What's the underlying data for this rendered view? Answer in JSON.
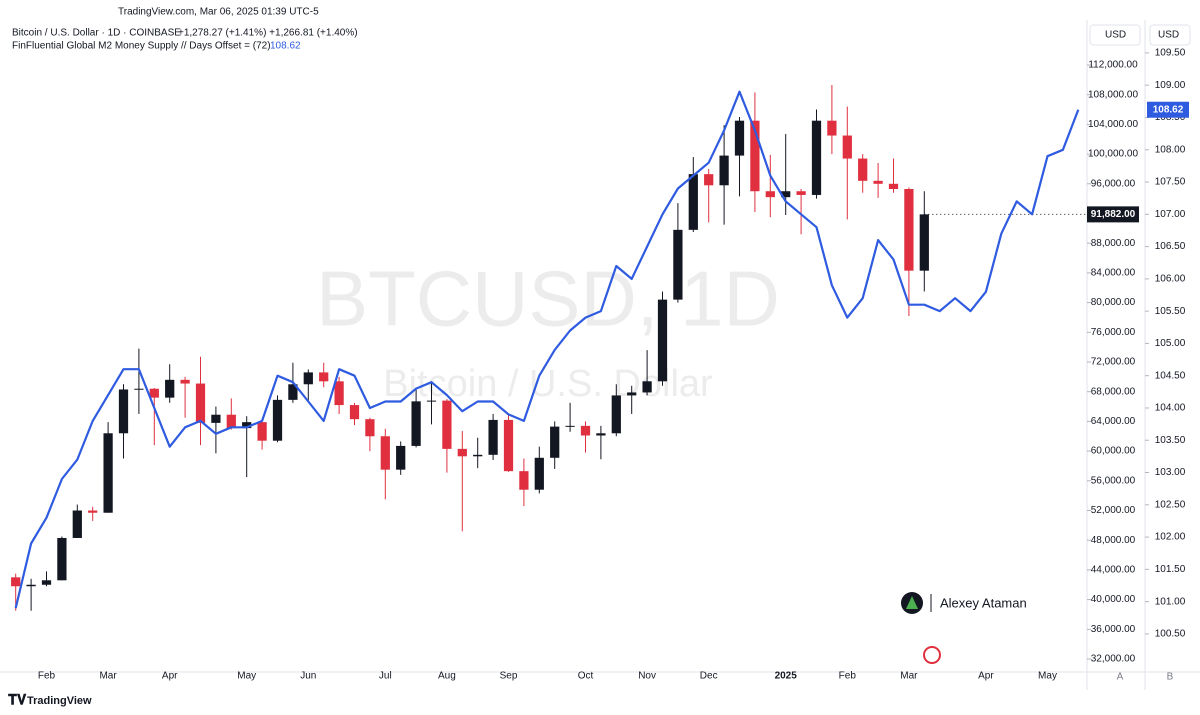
{
  "chart_data": {
    "type": "candlestick",
    "header": "TradingView.com, Mar 06, 2025 01:39 UTC-5",
    "watermark": "BTCUSD, 1D",
    "watermark_subtitle": "Bitcoin / U.S. Dollar",
    "author": "Alexey Ataman",
    "brand": "TradingView",
    "currency_labels": [
      "USD",
      "USD"
    ],
    "scale_labels": [
      "A",
      "B"
    ],
    "categories": [
      null,
      null,
      "Feb",
      null,
      null,
      null,
      "Mar",
      null,
      null,
      null,
      "Apr",
      null,
      null,
      null,
      null,
      "May",
      null,
      null,
      null,
      "Jun",
      null,
      null,
      null,
      null,
      "Jul",
      null,
      null,
      null,
      "Aug",
      null,
      null,
      null,
      "Sep",
      null,
      null,
      null,
      null,
      "Oct",
      null,
      null,
      null,
      "Nov",
      null,
      null,
      null,
      "Dec",
      null,
      null,
      null,
      null,
      "2025",
      null,
      null,
      null,
      "Feb",
      null,
      null,
      null,
      "Mar",
      null,
      null,
      null,
      null,
      "Apr",
      null,
      null,
      null,
      "May",
      null,
      null
    ],
    "series": [
      {
        "name": "Bitcoin / U.S. Dollar · 1D · COINBASE",
        "change_text": "+1,278.27 (+1.41%)  +1,266.81 (+1.40%)",
        "type": "candlestick",
        "up_color": "#131722",
        "down_color": "#e0303f",
        "last_price_label": "91,882.00",
        "open": [
          43000,
          41800,
          42000,
          42600,
          48300,
          52000,
          51700,
          62400,
          68300,
          68400,
          67200,
          69600,
          69100,
          63800,
          64900,
          63100,
          63900,
          61400,
          66900,
          69000,
          70600,
          69400,
          66200,
          64300,
          62000,
          57500,
          60700,
          66700,
          66800,
          60300,
          59300,
          59500,
          64200,
          57300,
          54800,
          59100,
          63300,
          63400,
          62100,
          62400,
          67500,
          67900,
          69400,
          80400,
          89800,
          97300,
          95800,
          99800,
          104500,
          95000,
          94200,
          95000,
          94500,
          104500,
          102500,
          99400,
          96400,
          96000,
          95300,
          84300,
          null,
          null,
          null,
          null,
          null,
          null,
          null,
          null,
          null,
          null
        ],
        "high": [
          43500,
          42800,
          43800,
          48500,
          52800,
          52500,
          63900,
          69000,
          73800,
          68500,
          71700,
          70000,
          72700,
          66000,
          67100,
          64700,
          64400,
          67500,
          71900,
          71000,
          71900,
          70000,
          66500,
          64500,
          63000,
          61300,
          68300,
          69400,
          67000,
          62700,
          61800,
          65000,
          64900,
          59000,
          60600,
          64000,
          66500,
          64000,
          63400,
          69000,
          68800,
          73600,
          81500,
          93400,
          99600,
          98000,
          103900,
          105000,
          108300,
          99900,
          102700,
          95300,
          106000,
          109300,
          106400,
          100000,
          98800,
          99400,
          95500,
          95000,
          null,
          null,
          null,
          null,
          null,
          null,
          null,
          null,
          null,
          null
        ],
        "low": [
          38500,
          38500,
          41800,
          42600,
          48300,
          50600,
          51700,
          59000,
          65000,
          60800,
          66500,
          64500,
          60800,
          59700,
          62900,
          56500,
          60200,
          61200,
          66500,
          66700,
          68600,
          65000,
          63500,
          60000,
          53500,
          56800,
          60500,
          63600,
          57100,
          49200,
          57700,
          58800,
          57200,
          52600,
          54300,
          57600,
          62600,
          59800,
          58900,
          62000,
          65000,
          67500,
          68800,
          80000,
          89500,
          90800,
          90500,
          94300,
          92200,
          91500,
          91800,
          89200,
          94000,
          100000,
          91200,
          94800,
          94100,
          94800,
          78200,
          81500,
          null,
          null,
          null,
          null,
          null,
          null,
          null,
          null,
          null,
          null
        ],
        "close": [
          41800,
          42000,
          42600,
          48300,
          52000,
          51700,
          62400,
          68300,
          68400,
          67200,
          69600,
          69100,
          63800,
          64900,
          63100,
          63900,
          61400,
          66900,
          69000,
          70600,
          69400,
          66200,
          64300,
          62000,
          57500,
          60700,
          66700,
          66800,
          60300,
          59300,
          59500,
          64200,
          57300,
          54800,
          59100,
          63300,
          63400,
          62100,
          62400,
          67500,
          67900,
          69400,
          80400,
          89800,
          97300,
          95800,
          99800,
          104500,
          95000,
          94200,
          95000,
          94500,
          104500,
          102500,
          99400,
          96400,
          96000,
          95300,
          84300,
          91882,
          null,
          null,
          null,
          null,
          null,
          null,
          null,
          null,
          null,
          null
        ]
      },
      {
        "name": "FinFluential Global M2 Money Supply // Days Offset = (72)",
        "type": "line",
        "axis": "y2",
        "color": "#2f5be0",
        "values": [
          100.9,
          101.9,
          102.3,
          102.9,
          103.2,
          103.8,
          104.2,
          104.6,
          104.6,
          104.0,
          103.4,
          103.7,
          103.8,
          103.6,
          103.7,
          103.7,
          103.8,
          104.5,
          104.4,
          104.1,
          103.8,
          104.6,
          104.5,
          104.0,
          104.1,
          104.1,
          104.3,
          104.4,
          104.2,
          103.95,
          104.1,
          104.1,
          103.9,
          103.8,
          104.5,
          104.9,
          105.2,
          105.4,
          105.5,
          106.2,
          106.0,
          106.5,
          107.0,
          107.4,
          107.6,
          107.8,
          108.3,
          108.9,
          108.3,
          107.6,
          107.2,
          107.0,
          106.8,
          105.9,
          105.4,
          105.7,
          106.6,
          106.3,
          105.6,
          105.6,
          105.5,
          105.7,
          105.5,
          105.8,
          106.7,
          107.2,
          107.0,
          107.9,
          108.0,
          108.62
        ]
      }
    ],
    "ylim": [
      30250,
      118060
    ],
    "yticks": [
      {
        "value": 32000,
        "label": "32,000.00"
      },
      {
        "value": 36000,
        "label": "36,000.00"
      },
      {
        "value": 40000,
        "label": "40,000.00"
      },
      {
        "value": 44000,
        "label": "44,000.00"
      },
      {
        "value": 48000,
        "label": "48,000.00"
      },
      {
        "value": 52000,
        "label": "52,000.00"
      },
      {
        "value": 56000,
        "label": "56,000.00"
      },
      {
        "value": 60000,
        "label": "60,000.00"
      },
      {
        "value": 64000,
        "label": "64,000.00"
      },
      {
        "value": 68000,
        "label": "68,000.00"
      },
      {
        "value": 72000,
        "label": "72,000.00"
      },
      {
        "value": 76000,
        "label": "76,000.00"
      },
      {
        "value": 80000,
        "label": "80,000.00"
      },
      {
        "value": 84000,
        "label": "84,000.00"
      },
      {
        "value": 88000,
        "label": "88,000.00"
      },
      {
        "value": 96000,
        "label": "96,000.00"
      },
      {
        "value": 100000,
        "label": "100,000.00"
      },
      {
        "value": 104000,
        "label": "104,000.00"
      },
      {
        "value": 108000,
        "label": "108,000.00"
      },
      {
        "value": 112000,
        "label": "112,000.00"
      }
    ],
    "y2lim": [
      99.91,
      110.01
    ],
    "y2ticks": [
      {
        "value": 100.5,
        "label": "100.50"
      },
      {
        "value": 101,
        "label": "101.00"
      },
      {
        "value": 101.5,
        "label": "101.50"
      },
      {
        "value": 102,
        "label": "102.00"
      },
      {
        "value": 102.5,
        "label": "102.50"
      },
      {
        "value": 103,
        "label": "103.00"
      },
      {
        "value": 103.5,
        "label": "103.50"
      },
      {
        "value": 104,
        "label": "104.00"
      },
      {
        "value": 104.5,
        "label": "104.50"
      },
      {
        "value": 105,
        "label": "105.00"
      },
      {
        "value": 105.5,
        "label": "105.50"
      },
      {
        "value": 106,
        "label": "106.00"
      },
      {
        "value": 106.5,
        "label": "106.50"
      },
      {
        "value": 107,
        "label": "107.00"
      },
      {
        "value": 107.5,
        "label": "107.50"
      },
      {
        "value": 108,
        "label": "108.00"
      },
      {
        "value": 108.5,
        "label": "108.50"
      },
      {
        "value": 109,
        "label": "109.00"
      },
      {
        "value": 109.5,
        "label": "109.50"
      }
    ],
    "grid": false
  }
}
